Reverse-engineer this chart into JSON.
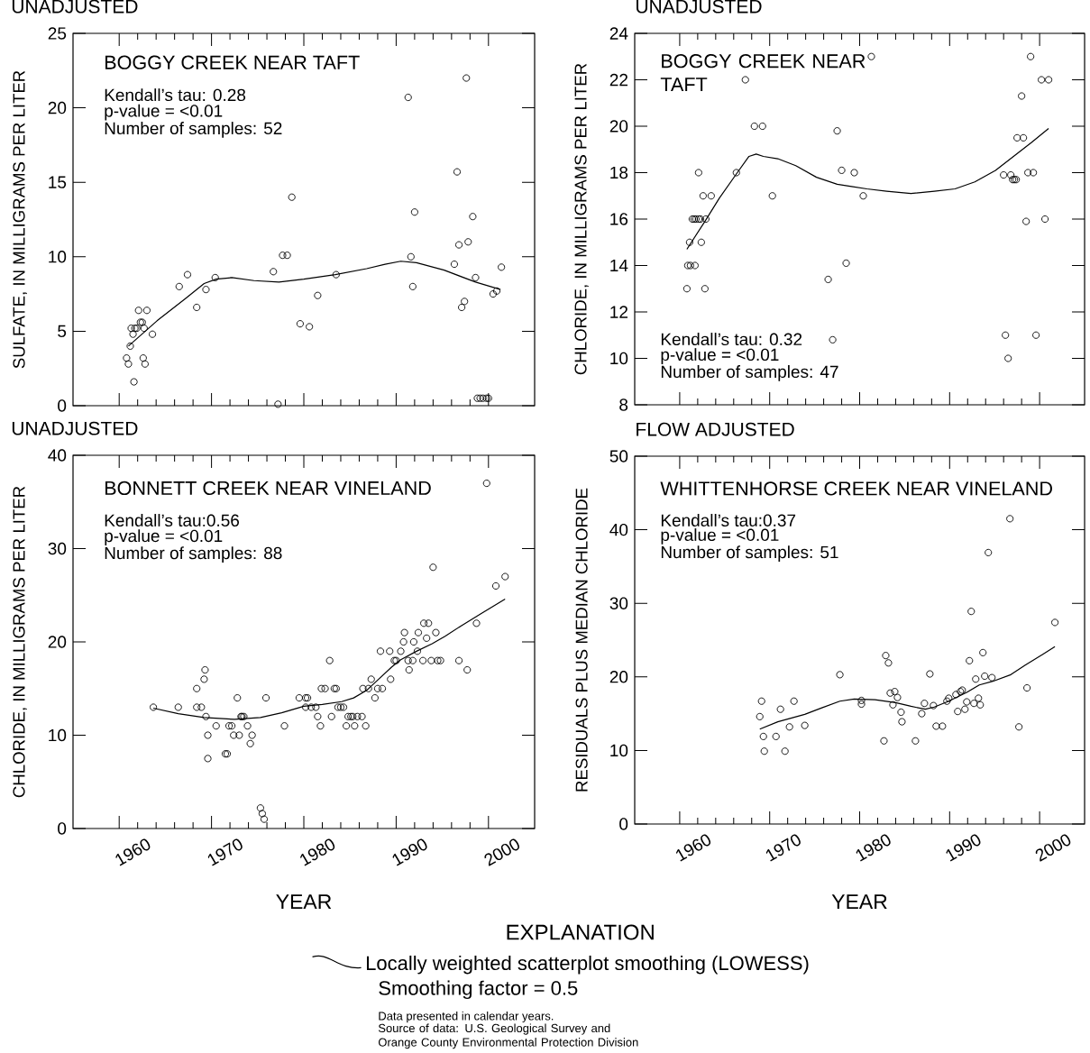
{
  "chart_data": [
    {
      "type": "scatter",
      "title": "UNADJUSTED",
      "subtitle": "BOGGY CREEK NEAR TAFT",
      "ylabel": "SULFATE, IN MILLIGRAMS PER LITER",
      "annotations": [
        "Kendall’s tau: 0.28",
        "p-value = <0.01",
        "Number of samples: 52"
      ],
      "xlim": [
        1955,
        2005
      ],
      "ylim": [
        0,
        25
      ],
      "xticks": [
        1960,
        1970,
        1980,
        1990,
        2000
      ],
      "yticks": [
        0,
        5,
        10,
        15,
        20,
        25
      ],
      "tick_labels": "y",
      "series": [
        {
          "marker": "circle",
          "color": "#000000",
          "x": [
            1960.8,
            1961.0,
            1961.2,
            1961.6,
            1961.3,
            1961.5,
            1961.7,
            1961.9,
            1962.1,
            1962.3,
            1962.5,
            1962.7,
            1962.6,
            1962.8,
            1963.0,
            1963.6,
            1966.5,
            1967.4,
            1968.4,
            1969.4,
            1970.4,
            1976.7,
            1977.2,
            1977.7,
            1978.2,
            1978.7,
            1979.6,
            1980.6,
            1981.5,
            1983.5,
            1991.3,
            1991.6,
            1991.8,
            1992.0,
            1996.3,
            1996.6,
            1996.8,
            1997.1,
            1997.4,
            1997.6,
            1997.8,
            1998.3,
            1998.6,
            1998.8,
            1999.1,
            1999.4,
            1999.8,
            2000.0,
            2000.5,
            2000.9,
            2001.4
          ],
          "values": [
            3.2,
            2.8,
            4.0,
            1.6,
            5.2,
            4.8,
            5.2,
            5.2,
            6.4,
            5.6,
            5.6,
            5.2,
            3.2,
            2.8,
            6.4,
            4.8,
            8.0,
            8.8,
            6.6,
            7.8,
            8.6,
            9.0,
            0.1,
            10.1,
            10.1,
            14.0,
            5.5,
            5.3,
            7.4,
            8.8,
            20.7,
            10.0,
            8.0,
            13.0,
            9.5,
            15.7,
            10.8,
            6.6,
            7.0,
            22.0,
            11.0,
            12.7,
            8.6,
            0.5,
            0.5,
            0.5,
            0.5,
            0.5,
            7.5,
            7.7,
            9.3
          ]
        },
        {
          "type": "line",
          "marker": "none",
          "line_style": "solid",
          "color": "#000000",
          "x": [
            1961.0,
            1964.1,
            1967.2,
            1969.2,
            1970.5,
            1972.2,
            1974.6,
            1977.3,
            1980.0,
            1983.4,
            1986.8,
            1988.8,
            1990.5,
            1992.2,
            1995.2,
            1998.6,
            2001.3
          ],
          "values": [
            4.0,
            5.7,
            7.2,
            8.2,
            8.5,
            8.6,
            8.4,
            8.3,
            8.5,
            8.8,
            9.2,
            9.5,
            9.7,
            9.6,
            9.1,
            8.3,
            7.8
          ]
        }
      ]
    },
    {
      "type": "scatter",
      "title": "UNADJUSTED",
      "subtitle": "BOGGY CREEK NEAR TAFT",
      "ylabel": "CHLORIDE, IN MILLIGRAMS PER LITER",
      "annotations": [
        "Kendall’s tau: 0.32",
        "p-value = <0.01",
        "Number of samples: 47"
      ],
      "xlim": [
        1955,
        2005
      ],
      "ylim": [
        8,
        24
      ],
      "xticks": [
        1960,
        1970,
        1980,
        1990,
        2000
      ],
      "yticks": [
        8,
        10,
        12,
        14,
        16,
        18,
        20,
        22,
        24
      ],
      "tick_labels": "y",
      "series": [
        {
          "marker": "circle",
          "color": "#000000",
          "x": [
            1960.8,
            1962.8,
            1960.9,
            1961.2,
            1961.7,
            1961.1,
            1962.4,
            1961.4,
            1961.6,
            1961.8,
            1962.1,
            1962.3,
            1962.9,
            1962.1,
            1962.6,
            1963.5,
            1966.3,
            1967.3,
            1968.3,
            1969.2,
            1970.3,
            1976.5,
            1977.0,
            1977.5,
            1978.0,
            1978.5,
            1979.4,
            1980.4,
            1981.3,
            1996.0,
            1996.2,
            1996.5,
            1996.8,
            1997.0,
            1997.2,
            1997.4,
            1997.5,
            1998.2,
            1998.0,
            1998.5,
            1998.7,
            1999.3,
            1999.0,
            1999.6,
            2000.2,
            2001.0,
            2000.6
          ],
          "values": [
            13,
            13,
            14,
            14,
            14,
            15,
            15,
            16,
            16,
            16,
            16,
            16,
            16,
            18,
            17,
            17,
            18,
            22,
            20,
            20,
            17,
            13.4,
            10.8,
            19.8,
            18.1,
            14.1,
            18,
            17,
            23,
            17.9,
            11,
            10,
            17.9,
            17.7,
            17.7,
            17.7,
            19.5,
            19.5,
            21.3,
            15.9,
            18,
            18,
            23,
            11,
            22,
            22,
            16
          ]
        },
        {
          "type": "line",
          "marker": "none",
          "line_style": "solid",
          "color": "#000000",
          "x": [
            1960.8,
            1962.8,
            1964.4,
            1966.4,
            1967.7,
            1968.5,
            1969.3,
            1970.9,
            1972.9,
            1975.2,
            1977.5,
            1979.1,
            1980.8,
            1983.0,
            1985.7,
            1988.3,
            1990.6,
            1992.8,
            1995.1,
            1997.1,
            1999.1,
            2001.0
          ],
          "values": [
            14.7,
            15.9,
            16.9,
            18.0,
            18.7,
            18.8,
            18.7,
            18.6,
            18.3,
            17.8,
            17.5,
            17.4,
            17.3,
            17.2,
            17.1,
            17.2,
            17.3,
            17.6,
            18.1,
            18.7,
            19.3,
            19.9
          ]
        }
      ]
    },
    {
      "type": "scatter",
      "title": "UNADJUSTED",
      "subtitle": "BONNETT CREEK NEAR VINELAND",
      "xlabel": "YEAR",
      "ylabel": "CHLORIDE, IN MILLIGRAMS PER LITER",
      "annotations": [
        "Kendall’s tau:0.56",
        "p-value = <0.01",
        "Number of samples: 88",
        "Smoothing factor = 0.5",
        "Data presented in calendar years.",
        "Source of data: U.S. Geological Survey and Orange County Environmental Protection Division"
      ],
      "legend": "bottom",
      "legend_title": "EXPLANATION",
      "xlim": [
        1955,
        2005
      ],
      "ylim": [
        0,
        40
      ],
      "xticks": [
        1960,
        1970,
        1980,
        1990,
        2000
      ],
      "yticks": [
        0,
        10,
        20,
        30,
        40
      ],
      "series": [
        {
          "marker": "circle",
          "color": "#000000",
          "x": [
            1963.7,
            1966.4,
            1968.4,
            1968.4,
            1968.9,
            1969.2,
            1969.3,
            1969.4,
            1969.6,
            1969.6,
            1970.5,
            1971.5,
            1971.7,
            1971.9,
            1972.2,
            1972.4,
            1973.0,
            1972.8,
            1973.2,
            1973.3,
            1973.5,
            1973.9,
            1974.2,
            1974.4,
            1975.3,
            1975.5,
            1975.7,
            1975.9,
            1977.9,
            1979.5,
            1980.2,
            1980.2,
            1980.4,
            1980.8,
            1981.3,
            1981.5,
            1981.8,
            1981.9,
            1982.3,
            1982.8,
            1983.0,
            1983.3,
            1983.5,
            1983.7,
            1984.0,
            1984.3,
            1984.6,
            1984.8,
            1985.1,
            1985.3,
            1985.8,
            1986.3,
            1985.5,
            1986.7,
            1986.4,
            1987.0,
            1987.3,
            1987.7,
            1988.0,
            1988.3,
            1988.5,
            1989.3,
            1989.4,
            1989.8,
            1990.0,
            1990.5,
            1990.8,
            1990.9,
            1991.3,
            1991.8,
            1991.4,
            1991.9,
            1992.3,
            1992.4,
            1992.9,
            1993.0,
            1993.5,
            1993.3,
            1993.8,
            1994.0,
            1994.3,
            1994.5,
            1994.8,
            1996.8,
            1997.7,
            1998.7,
            1999.8,
            2000.8,
            2001.8
          ],
          "values": [
            13,
            13,
            15,
            13,
            13,
            16,
            17,
            12,
            10,
            7.5,
            11,
            8,
            8,
            11,
            11,
            10,
            10,
            14,
            12,
            12,
            12,
            11,
            9.1,
            10,
            2.2,
            1.6,
            1.0,
            14,
            11,
            14,
            13,
            14,
            14,
            13,
            13,
            12,
            11,
            15,
            15,
            18,
            12,
            15,
            15,
            13,
            13,
            13,
            11,
            12,
            12,
            12,
            12,
            12,
            11,
            11,
            15,
            15,
            16,
            14,
            15,
            19,
            15,
            19,
            16,
            18,
            18,
            19,
            20,
            21,
            18,
            18,
            17,
            20,
            19,
            21,
            18,
            22,
            22,
            20.4,
            18,
            28,
            21,
            18,
            18,
            18,
            17,
            22,
            37,
            26,
            27
          ]
        },
        {
          "type": "line",
          "marker": "none",
          "line_style": "solid",
          "color": "#000000",
          "name": "Locally weighted scatterplot smoothing (LOWESS)",
          "x": [
            1963.7,
            1966.4,
            1969.2,
            1972.5,
            1975.3,
            1977.6,
            1980.0,
            1982.0,
            1984.1,
            1985.4,
            1986.8,
            1988.1,
            1989.5,
            1990.5,
            1992.2,
            1993.9,
            1995.3,
            1997.0,
            1999.3,
            2001.8
          ],
          "values": [
            12.9,
            12.3,
            11.9,
            11.7,
            11.9,
            12.4,
            13.1,
            13.3,
            13.6,
            14.0,
            14.8,
            16.0,
            17.3,
            18.1,
            19.0,
            19.8,
            20.6,
            21.7,
            23.1,
            24.6
          ]
        }
      ]
    },
    {
      "type": "scatter",
      "title": "FLOW ADJUSTED",
      "subtitle": "WHITTENHORSE CREEK NEAR VINELAND",
      "xlabel": "YEAR",
      "ylabel": "RESIDUALS PLUS MEDIAN CHLORIDE",
      "annotations": [
        "Kendall’s tau:0.37",
        "p-value = <0.01",
        "Number of samples: 51"
      ],
      "xlim": [
        1955,
        2005
      ],
      "ylim": [
        0,
        50
      ],
      "xticks": [
        1960,
        1970,
        1980,
        1990,
        2000
      ],
      "yticks": [
        0,
        10,
        20,
        30,
        40,
        50
      ],
      "series": [
        {
          "marker": "circle",
          "color": "#000000",
          "x": [
            1968.9,
            1969.1,
            1969.3,
            1969.4,
            1970.7,
            1971.2,
            1971.7,
            1972.2,
            1972.7,
            1973.9,
            1977.8,
            1980.2,
            1980.2,
            1982.7,
            1982.9,
            1983.2,
            1983.4,
            1983.9,
            1983.7,
            1984.2,
            1984.6,
            1984.7,
            1986.2,
            1986.9,
            1987.2,
            1987.8,
            1988.2,
            1988.5,
            1989.2,
            1989.7,
            1989.9,
            1990.7,
            1990.9,
            1991.2,
            1991.4,
            1991.7,
            1991.9,
            1992.2,
            1992.4,
            1992.7,
            1992.9,
            1993.2,
            1993.4,
            1993.7,
            1993.9,
            1994.3,
            1994.7,
            1996.7,
            1997.7,
            1998.6,
            2001.7
          ],
          "values": [
            14.6,
            16.7,
            11.9,
            9.9,
            11.9,
            15.6,
            9.9,
            13.2,
            16.7,
            13.4,
            20.3,
            16.8,
            16.3,
            11.3,
            22.9,
            21.9,
            17.8,
            18.0,
            16.2,
            17.2,
            15.2,
            13.9,
            11.3,
            15.0,
            16.4,
            20.4,
            16.1,
            13.3,
            13.3,
            16.7,
            17.1,
            17.6,
            15.3,
            18.0,
            18.2,
            15.6,
            16.6,
            22.2,
            28.9,
            16.4,
            19.7,
            17.1,
            16.2,
            23.3,
            20.1,
            36.9,
            19.9,
            41.5,
            13.2,
            18.5,
            27.4
          ]
        },
        {
          "type": "line",
          "marker": "none",
          "line_style": "solid",
          "color": "#000000",
          "x": [
            1968.9,
            1970.9,
            1973.9,
            1975.8,
            1977.8,
            1979.4,
            1981.7,
            1984.0,
            1985.7,
            1987.3,
            1988.3,
            1989.9,
            1991.9,
            1993.3,
            1994.8,
            1996.8,
            1998.4,
            2000.4,
            2001.7
          ],
          "values": [
            12.9,
            13.9,
            14.9,
            15.8,
            16.7,
            17.0,
            16.9,
            16.5,
            16.0,
            15.6,
            15.9,
            16.7,
            17.9,
            18.9,
            19.4,
            20.3,
            21.6,
            23.1,
            24.1
          ]
        }
      ]
    }
  ]
}
